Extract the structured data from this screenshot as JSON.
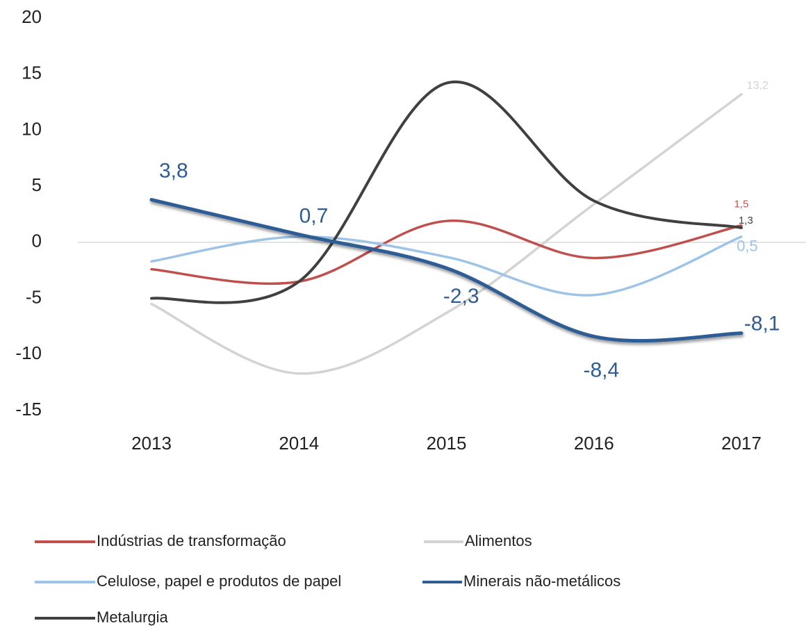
{
  "chart_data": {
    "type": "line",
    "categories": [
      "2013",
      "2014",
      "2015",
      "2016",
      "2017"
    ],
    "ylim": [
      -15,
      20
    ],
    "yticks": [
      -15,
      -10,
      -5,
      0,
      5,
      10,
      15,
      20
    ],
    "series": [
      {
        "name": "Indústrias de transformação",
        "color": "#c0504d",
        "values": [
          -2.4,
          -3.5,
          1.9,
          -1.4,
          1.5
        ],
        "value_labels": [
          null,
          null,
          null,
          null,
          "1,5"
        ]
      },
      {
        "name": "Alimentos",
        "color": "#d3d3d3",
        "values": [
          -5.5,
          -11.7,
          -6.3,
          3.4,
          13.2
        ],
        "value_labels": [
          null,
          null,
          null,
          null,
          "13,2"
        ]
      },
      {
        "name": "Celulose, papel e produtos de papel",
        "color": "#9dc3e6",
        "values": [
          -1.7,
          0.5,
          -1.3,
          -4.7,
          0.5
        ],
        "value_labels": [
          null,
          null,
          null,
          null,
          "0,5"
        ]
      },
      {
        "name": "Minerais não-metálicos",
        "color": "#2e5c94",
        "values": [
          3.8,
          0.7,
          -2.3,
          -8.4,
          -8.1
        ],
        "value_labels": [
          "3,8",
          "0,7",
          "-2,3",
          "-8,4",
          "-8,1"
        ]
      },
      {
        "name": "Metalurgia",
        "color": "#404040",
        "values": [
          -5.0,
          -3.5,
          14.2,
          3.7,
          1.3
        ],
        "value_labels": [
          null,
          null,
          null,
          null,
          "1,3"
        ]
      }
    ]
  }
}
